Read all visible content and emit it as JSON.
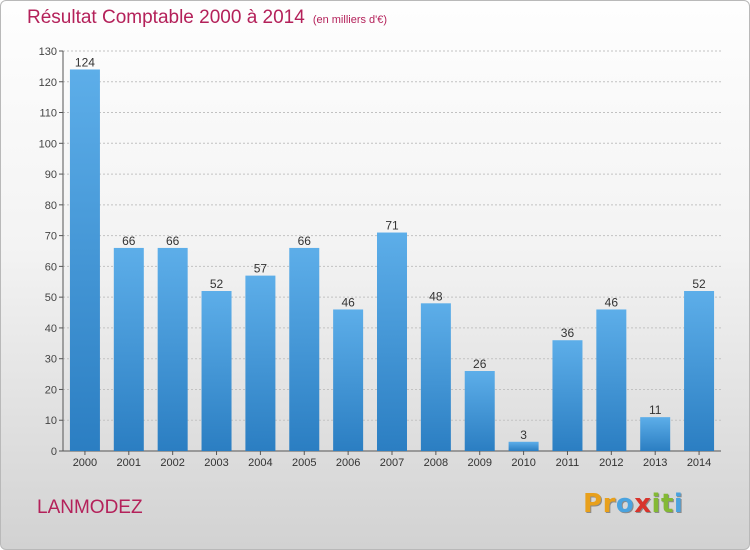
{
  "header": {
    "title": "Résultat Comptable 2000 à 2014",
    "subtitle": "(en milliers d'€)"
  },
  "footer": {
    "commune": "LANMODEZ",
    "brand_letters": [
      "P",
      "r",
      "o",
      "x",
      "i",
      "t",
      "i"
    ]
  },
  "colors": {
    "title": "#b4215a",
    "bar_top": "#5daee9",
    "bar_bottom": "#2b7ec2",
    "brand": [
      "#e8a01c",
      "#e8a01c",
      "#4aa3df",
      "#d8342c",
      "#84b935",
      "#84b935",
      "#4aa3df"
    ]
  },
  "chart_data": {
    "type": "bar",
    "categories": [
      "2000",
      "2001",
      "2002",
      "2003",
      "2004",
      "2005",
      "2006",
      "2007",
      "2008",
      "2009",
      "2010",
      "2011",
      "2012",
      "2013",
      "2014"
    ],
    "values": [
      124,
      66,
      66,
      52,
      57,
      66,
      46,
      71,
      48,
      26,
      3,
      36,
      46,
      11,
      52
    ],
    "title": "Résultat Comptable 2000 à 2014",
    "subtitle": "(en milliers d'€)",
    "ylim": [
      0,
      130
    ],
    "yticks": [
      0,
      10,
      20,
      30,
      40,
      50,
      60,
      70,
      80,
      90,
      100,
      110,
      120,
      130
    ],
    "grid": true,
    "data_labels": true
  }
}
